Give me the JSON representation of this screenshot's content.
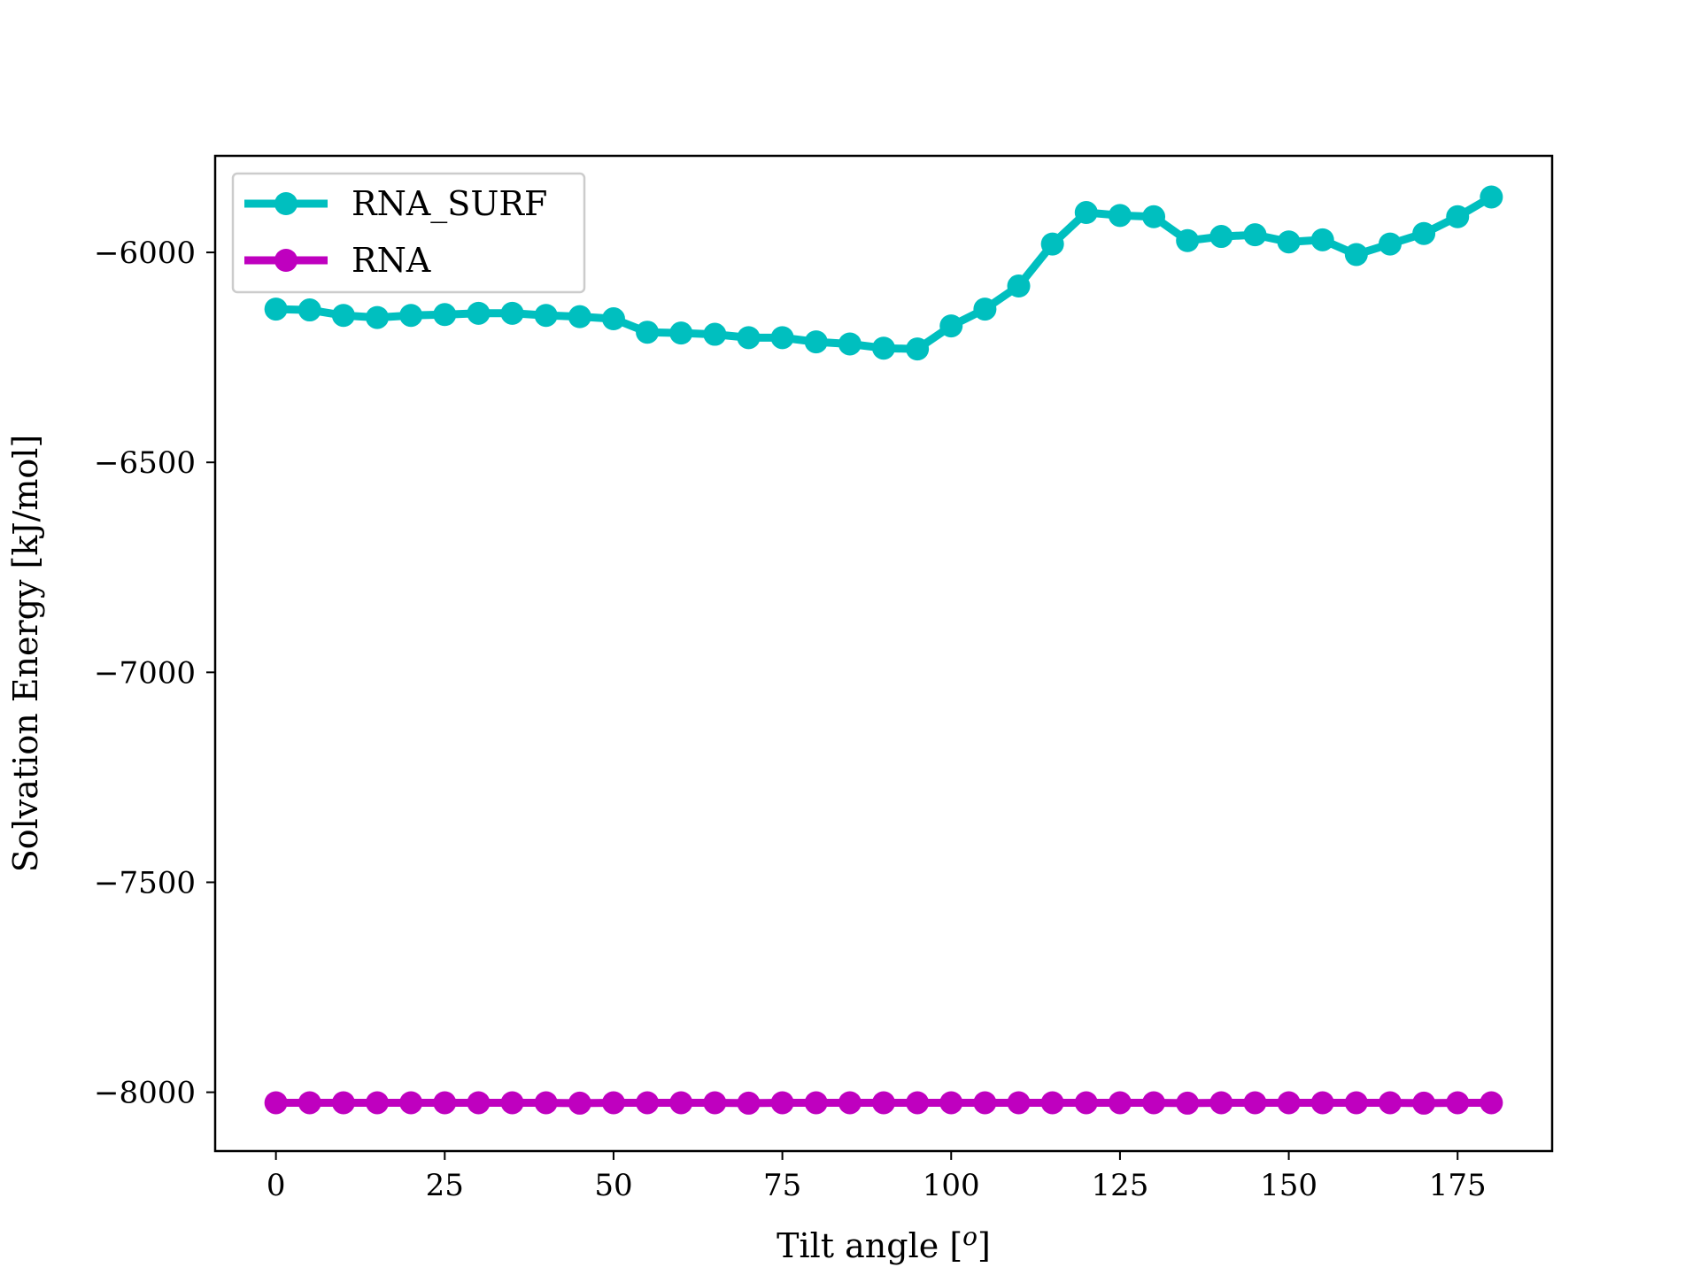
{
  "chart_data": {
    "type": "line",
    "title": "",
    "xlabel": "Tilt angle [",
    "xlabel_sup": "o",
    "xlabel_end": "]",
    "ylabel": "Solvation Energy [kJ/mol]",
    "xlim": [
      -9,
      189
    ],
    "ylim": [
      -8140,
      -5770
    ],
    "xticks": [
      0,
      25,
      50,
      75,
      100,
      125,
      150,
      175
    ],
    "yticks": [
      -6000,
      -6500,
      -7000,
      -7500,
      -8000
    ],
    "ytick_labels": [
      "−6000",
      "−6500",
      "−7000",
      "−7500",
      "−8000"
    ],
    "legend_position": "upper-left",
    "x": [
      0,
      5,
      10,
      15,
      20,
      25,
      30,
      35,
      40,
      45,
      50,
      55,
      60,
      65,
      70,
      75,
      80,
      85,
      90,
      95,
      100,
      105,
      110,
      115,
      120,
      125,
      130,
      135,
      140,
      145,
      150,
      155,
      160,
      165,
      170,
      175,
      180
    ],
    "series": [
      {
        "name": "RNA_SURF",
        "color": "#00bfbf",
        "values": [
          -6135,
          -6137,
          -6150,
          -6155,
          -6150,
          -6148,
          -6145,
          -6145,
          -6150,
          -6153,
          -6158,
          -6190,
          -6192,
          -6195,
          -6203,
          -6203,
          -6213,
          -6218,
          -6228,
          -6230,
          -6175,
          -6135,
          -6080,
          -5980,
          -5905,
          -5912,
          -5915,
          -5972,
          -5962,
          -5958,
          -5975,
          -5970,
          -6005,
          -5980,
          -5955,
          -5915,
          -5868
        ]
      },
      {
        "name": "RNA",
        "color": "#bf00bf",
        "values": [
          -8025,
          -8025,
          -8025,
          -8025,
          -8025,
          -8025,
          -8025,
          -8025,
          -8025,
          -8026,
          -8025,
          -8025,
          -8025,
          -8025,
          -8026,
          -8025,
          -8025,
          -8025,
          -8025,
          -8025,
          -8025,
          -8025,
          -8025,
          -8025,
          -8025,
          -8025,
          -8025,
          -8026,
          -8025,
          -8025,
          -8025,
          -8025,
          -8025,
          -8025,
          -8026,
          -8025,
          -8025
        ]
      }
    ]
  }
}
